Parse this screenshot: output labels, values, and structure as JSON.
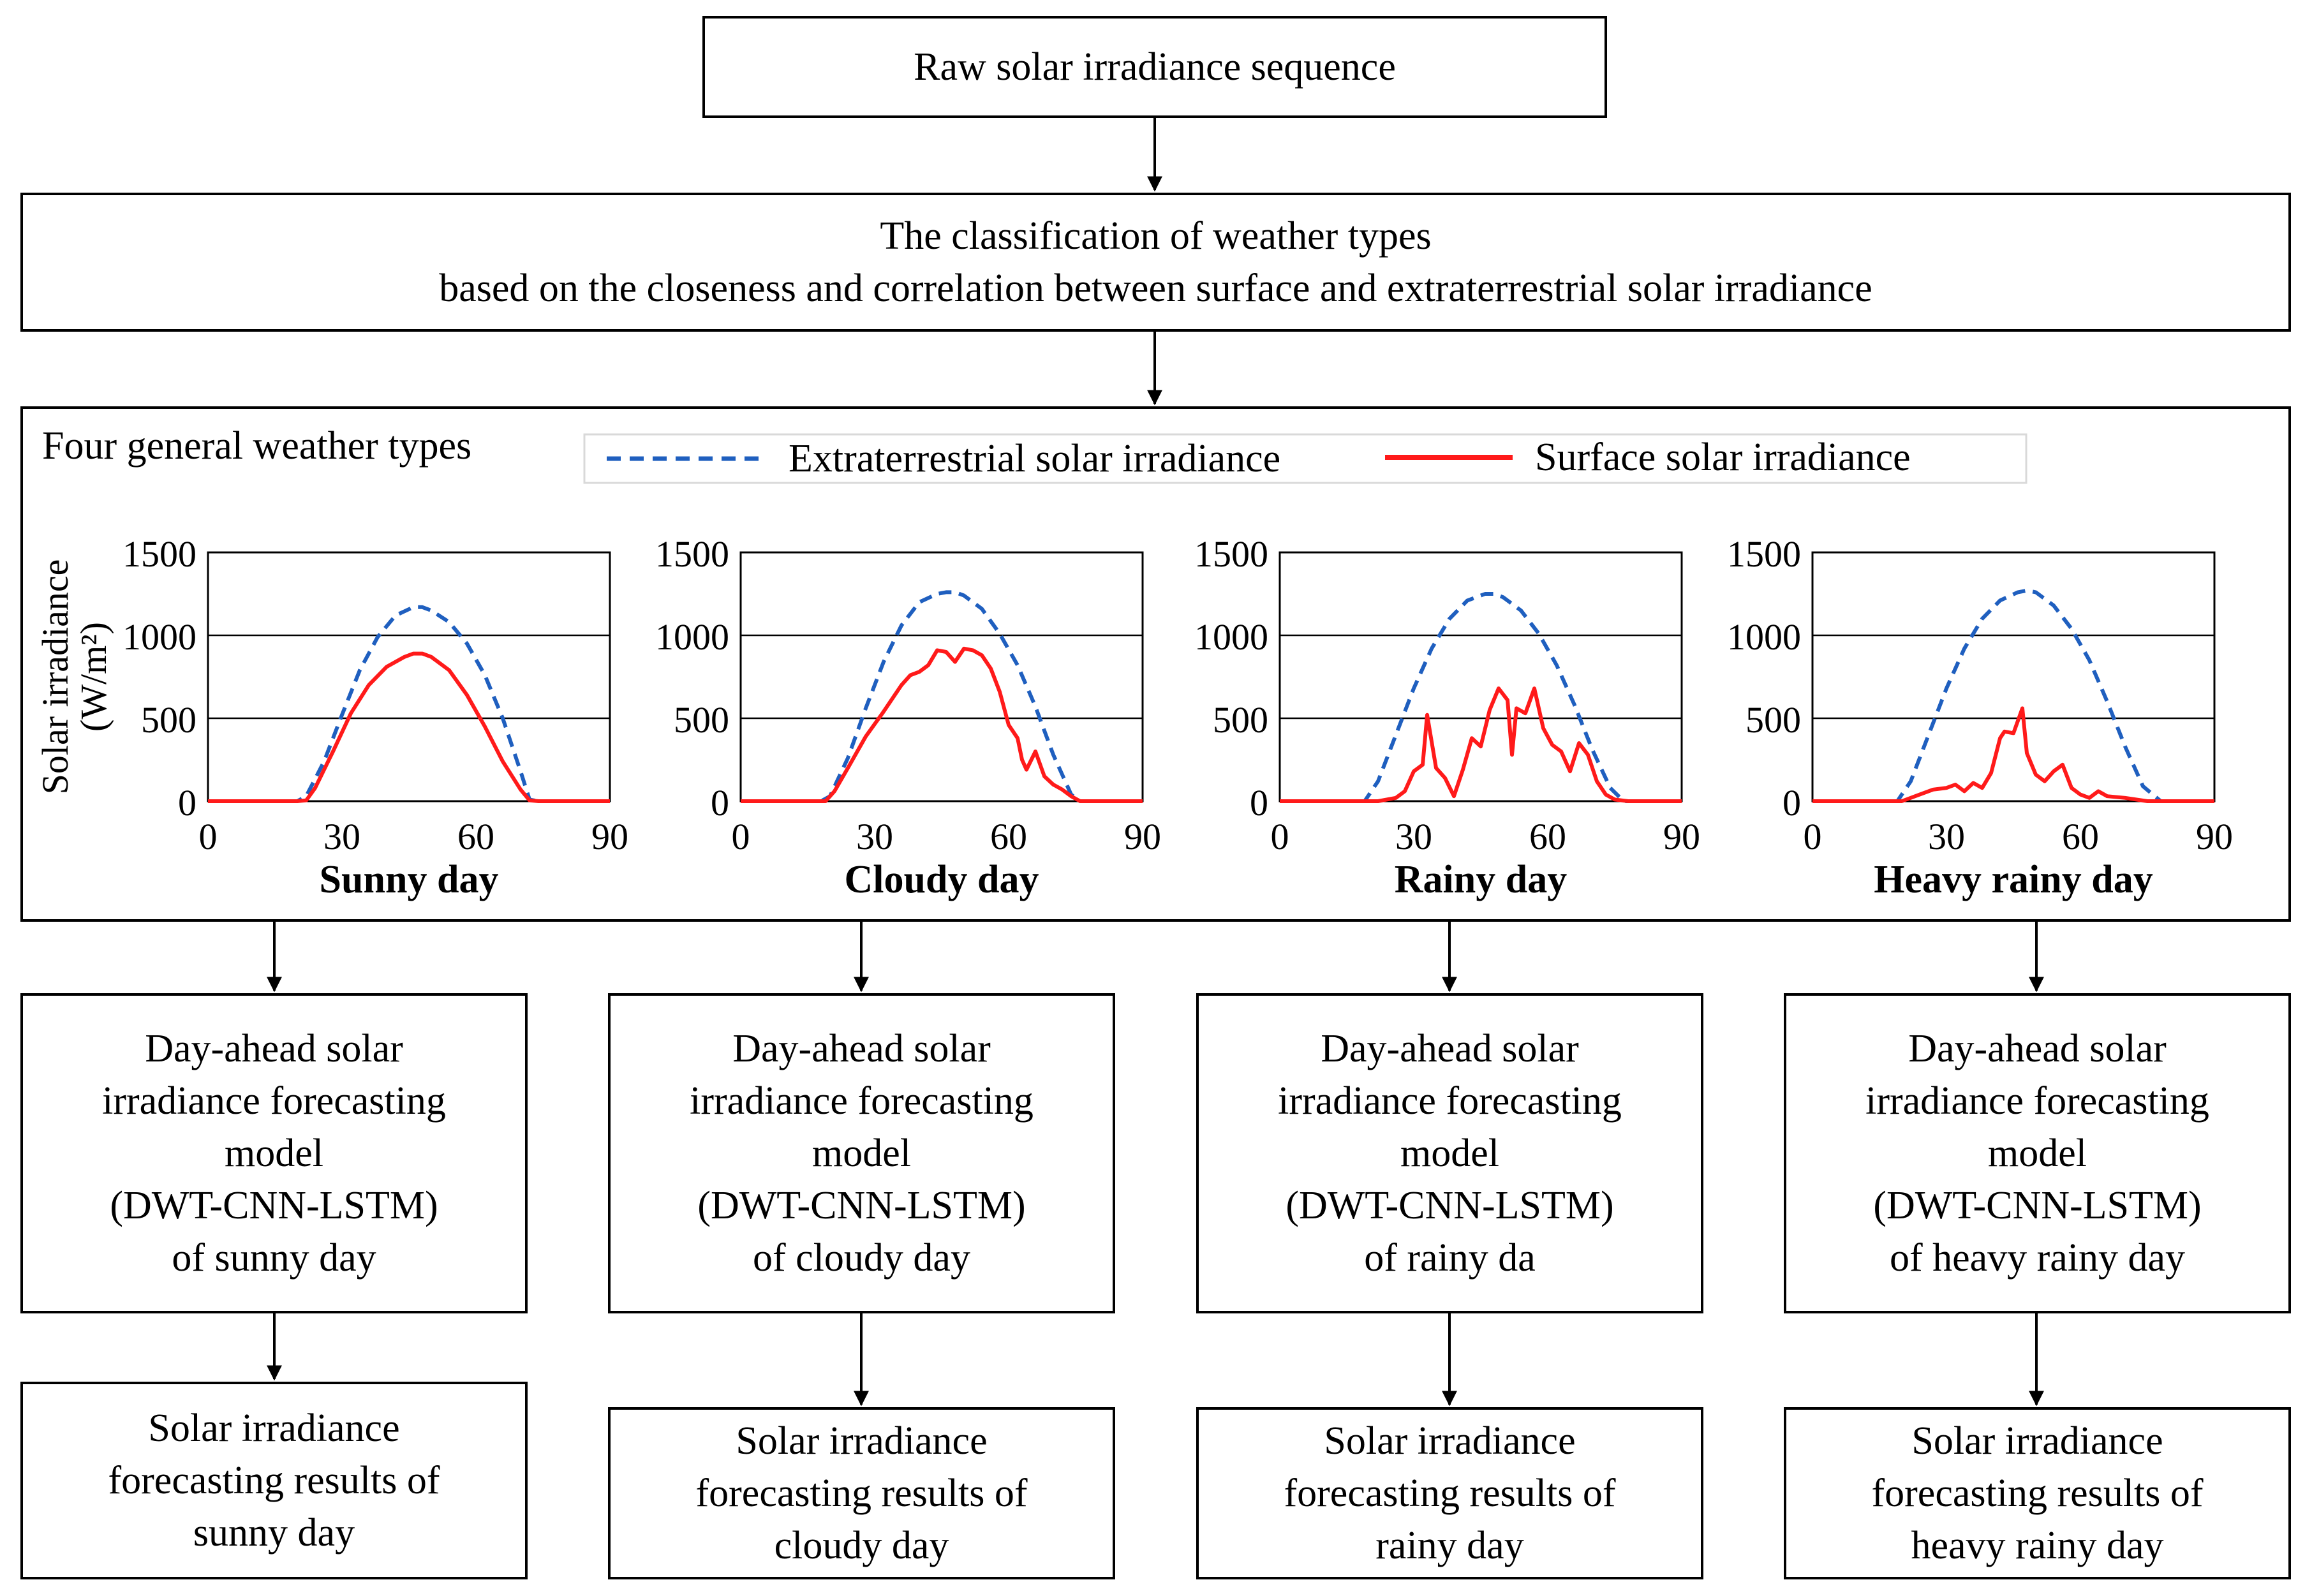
{
  "flow": {
    "raw": "Raw solar irradiance sequence",
    "classification": {
      "line1": "The classification of weather types",
      "line2": "based on the closeness and correlation between surface and extraterrestrial solar irradiance"
    },
    "panel_title": "Four general weather types",
    "legend": {
      "extraterrestrial": "Extraterrestrial solar irradiance",
      "surface": "Surface solar irradiance"
    },
    "models": [
      {
        "line1": "Day-ahead solar",
        "line2": "irradiance forecasting",
        "line3": "model",
        "line4": "(DWT-CNN-LSTM)",
        "line5": "of sunny day"
      },
      {
        "line1": "Day-ahead solar",
        "line2": "irradiance forecasting",
        "line3": "model",
        "line4": "(DWT-CNN-LSTM)",
        "line5": "of cloudy day"
      },
      {
        "line1": "Day-ahead solar",
        "line2": "irradiance forecasting",
        "line3": "model",
        "line4": "(DWT-CNN-LSTM)",
        "line5": "of rainy da"
      },
      {
        "line1": "Day-ahead solar",
        "line2": "irradiance forecasting",
        "line3": "model",
        "line4": "(DWT-CNN-LSTM)",
        "line5": "of heavy rainy day"
      }
    ],
    "results": [
      {
        "line1": "Solar irradiance",
        "line2": "forecasting results of",
        "line3": "sunny day"
      },
      {
        "line1": "Solar irradiance",
        "line2": "forecasting results of",
        "line3": "cloudy day"
      },
      {
        "line1": "Solar irradiance",
        "line2": "forecasting results of",
        "line3": "rainy day"
      },
      {
        "line1": "Solar irradiance",
        "line2": "forecasting results of",
        "line3": "heavy rainy day"
      }
    ]
  },
  "colors": {
    "extraterrestrial": "#1f5fbf",
    "surface": "#ff1a1a"
  },
  "chart_data": [
    {
      "type": "line",
      "title": "Sunny day",
      "ylabel": "Solar irradiance (W/m²)",
      "xlabel": "",
      "xlim": [
        0,
        90
      ],
      "ylim": [
        0,
        1500
      ],
      "xticks": [
        0,
        30,
        60,
        90
      ],
      "yticks": [
        0,
        500,
        1000,
        1500
      ],
      "grid": "horizontal",
      "series": [
        {
          "name": "Extraterrestrial solar irradiance",
          "style": "dashed",
          "x": [
            0,
            10,
            20,
            22,
            26,
            30,
            34,
            38,
            42,
            46,
            48,
            50,
            54,
            58,
            62,
            66,
            70,
            72,
            74,
            80,
            90
          ],
          "y": [
            0,
            0,
            0,
            30,
            240,
            520,
            790,
            990,
            1120,
            1170,
            1170,
            1150,
            1080,
            950,
            760,
            500,
            180,
            10,
            0,
            0,
            0
          ]
        },
        {
          "name": "Surface solar irradiance",
          "style": "solid",
          "x": [
            0,
            10,
            20,
            22,
            24,
            28,
            32,
            36,
            40,
            44,
            46,
            48,
            50,
            54,
            58,
            62,
            66,
            70,
            72,
            74,
            80,
            90
          ],
          "y": [
            0,
            0,
            0,
            5,
            80,
            300,
            530,
            700,
            810,
            870,
            890,
            890,
            870,
            790,
            640,
            450,
            240,
            70,
            5,
            0,
            0,
            0
          ]
        }
      ]
    },
    {
      "type": "line",
      "title": "Cloudy day",
      "xlim": [
        0,
        90
      ],
      "ylim": [
        0,
        1500
      ],
      "xticks": [
        0,
        30,
        60,
        90
      ],
      "yticks": [
        0,
        500,
        1000,
        1500
      ],
      "grid": "horizontal",
      "series": [
        {
          "name": "Extraterrestrial solar irradiance",
          "style": "dashed",
          "x": [
            0,
            10,
            18,
            20,
            24,
            28,
            32,
            36,
            40,
            44,
            46,
            48,
            50,
            54,
            58,
            62,
            66,
            70,
            74,
            76,
            80,
            90
          ],
          "y": [
            0,
            0,
            0,
            30,
            260,
            560,
            840,
            1060,
            1200,
            1250,
            1260,
            1260,
            1240,
            1160,
            1010,
            820,
            570,
            280,
            40,
            0,
            0,
            0
          ]
        },
        {
          "name": "Surface solar irradiance",
          "style": "solid",
          "x": [
            0,
            10,
            19,
            21,
            24,
            28,
            32,
            36,
            38,
            40,
            42,
            44,
            46,
            48,
            50,
            52,
            54,
            56,
            58,
            60,
            62,
            63,
            64,
            66,
            68,
            70,
            72,
            74,
            76,
            80,
            90
          ],
          "y": [
            0,
            0,
            0,
            60,
            200,
            390,
            540,
            700,
            760,
            780,
            820,
            910,
            900,
            840,
            920,
            910,
            880,
            800,
            660,
            460,
            380,
            250,
            190,
            300,
            150,
            100,
            70,
            30,
            0,
            0,
            0
          ]
        }
      ]
    },
    {
      "type": "line",
      "title": "Rainy day",
      "xlim": [
        0,
        90
      ],
      "ylim": [
        0,
        1500
      ],
      "xticks": [
        0,
        30,
        60,
        90
      ],
      "yticks": [
        0,
        500,
        1000,
        1500
      ],
      "grid": "horizontal",
      "series": [
        {
          "name": "Extraterrestrial solar irradiance",
          "style": "dashed",
          "x": [
            0,
            10,
            19,
            22,
            26,
            30,
            34,
            38,
            42,
            46,
            48,
            50,
            54,
            58,
            62,
            66,
            70,
            74,
            77,
            80,
            90
          ],
          "y": [
            0,
            0,
            0,
            120,
            400,
            680,
            920,
            1100,
            1210,
            1250,
            1250,
            1230,
            1150,
            1010,
            820,
            580,
            310,
            80,
            0,
            0,
            0
          ]
        },
        {
          "name": "Surface solar irradiance",
          "style": "solid",
          "x": [
            0,
            10,
            22,
            26,
            28,
            30,
            32,
            33,
            35,
            37,
            39,
            41,
            43,
            45,
            47,
            49,
            51,
            52,
            53,
            55,
            57,
            59,
            61,
            63,
            65,
            67,
            69,
            71,
            73,
            75,
            78,
            90
          ],
          "y": [
            0,
            0,
            0,
            20,
            60,
            180,
            220,
            520,
            200,
            140,
            30,
            190,
            380,
            330,
            550,
            680,
            610,
            280,
            560,
            530,
            680,
            440,
            340,
            300,
            180,
            350,
            280,
            120,
            40,
            10,
            0,
            0
          ]
        }
      ]
    },
    {
      "type": "line",
      "title": "Heavy rainy day",
      "xlim": [
        0,
        90
      ],
      "ylim": [
        0,
        1500
      ],
      "xticks": [
        0,
        30,
        60,
        90
      ],
      "yticks": [
        0,
        500,
        1000,
        1500
      ],
      "grid": "horizontal",
      "series": [
        {
          "name": "Extraterrestrial solar irradiance",
          "style": "dashed",
          "x": [
            0,
            10,
            19,
            22,
            26,
            30,
            34,
            38,
            42,
            46,
            48,
            50,
            54,
            58,
            62,
            66,
            70,
            74,
            78,
            80,
            90
          ],
          "y": [
            0,
            0,
            0,
            120,
            400,
            680,
            920,
            1100,
            1210,
            1260,
            1270,
            1260,
            1180,
            1040,
            850,
            600,
            330,
            90,
            0,
            0,
            0
          ]
        },
        {
          "name": "Surface solar irradiance",
          "style": "solid",
          "x": [
            0,
            10,
            20,
            24,
            27,
            30,
            32,
            34,
            36,
            38,
            40,
            42,
            43,
            45,
            47,
            48,
            50,
            52,
            54,
            56,
            58,
            60,
            62,
            64,
            66,
            70,
            75,
            80,
            90
          ],
          "y": [
            0,
            0,
            0,
            40,
            70,
            80,
            100,
            60,
            110,
            80,
            170,
            380,
            420,
            410,
            560,
            290,
            160,
            120,
            180,
            220,
            80,
            40,
            20,
            60,
            30,
            20,
            0,
            0,
            0
          ]
        }
      ]
    }
  ]
}
